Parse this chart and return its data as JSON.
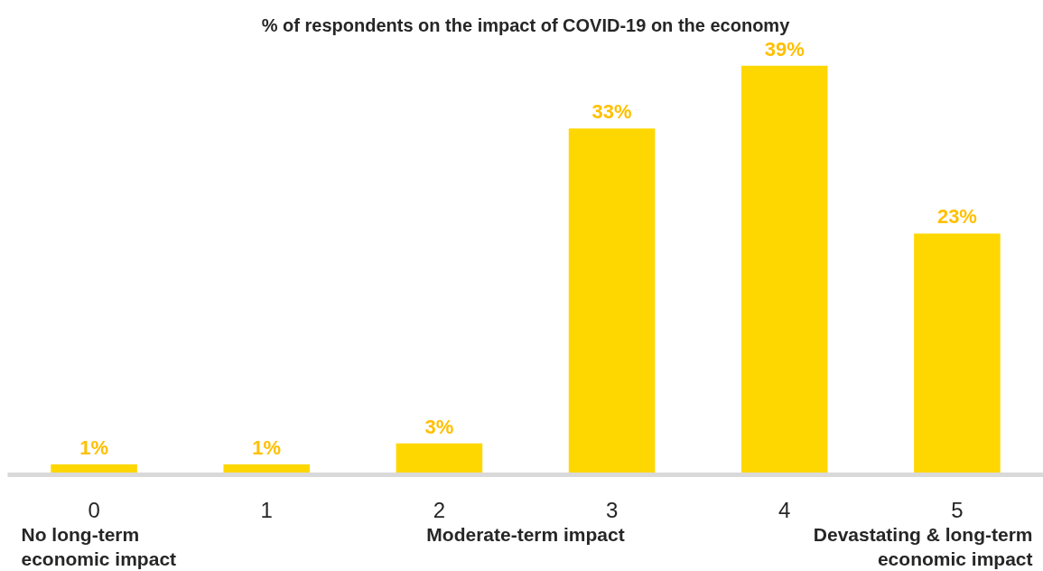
{
  "chart_data": {
    "type": "bar",
    "title": "% of respondents on the impact of COVID-19 on the economy",
    "categories": [
      "0",
      "1",
      "2",
      "3",
      "4",
      "5"
    ],
    "values": [
      1,
      1,
      3,
      33,
      39,
      23
    ],
    "value_labels": [
      "1%",
      "1%",
      "3%",
      "33%",
      "39%",
      "23%"
    ],
    "color": "#ffd700",
    "annotations": [
      "No long-term\neconomic impact",
      "Moderate-term impact",
      "Devastating & long-term\neconomic impact"
    ],
    "tick_labels": "x"
  }
}
